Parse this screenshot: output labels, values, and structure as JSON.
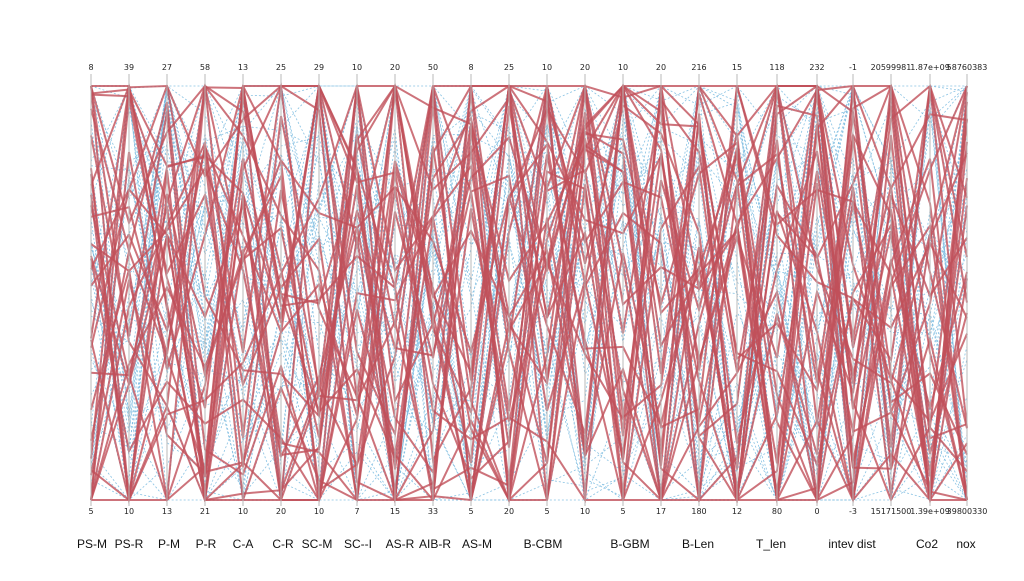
{
  "chart_data": {
    "type": "parallel-coordinates",
    "axes": [
      {
        "label": "PS-M",
        "max": "8",
        "min": "5"
      },
      {
        "label": "PS-R",
        "max": "39",
        "min": "10"
      },
      {
        "label": "P-M",
        "max": "27",
        "min": "13"
      },
      {
        "label": "P-R",
        "max": "58",
        "min": "21"
      },
      {
        "label": "C-A",
        "max": "13",
        "min": "10"
      },
      {
        "label": "C-R",
        "max": "25",
        "min": "20"
      },
      {
        "label": "SC-M",
        "max": "29",
        "min": "10"
      },
      {
        "label": "SC--I",
        "max": "10",
        "min": "7"
      },
      {
        "label": "AS-R",
        "max": "20",
        "min": "15"
      },
      {
        "label": "AIB-R",
        "max": "50",
        "min": "33"
      },
      {
        "label": "AS-M",
        "max": "8",
        "min": "5"
      },
      {
        "label": "",
        "max": "25",
        "min": "20"
      },
      {
        "label": "B-CBM",
        "max": "10",
        "min": "5"
      },
      {
        "label": "",
        "max": "20",
        "min": "10"
      },
      {
        "label": "B-GBM",
        "max": "10",
        "min": "5"
      },
      {
        "label": "",
        "max": "20",
        "min": "17"
      },
      {
        "label": "B-Len",
        "max": "216",
        "min": "180"
      },
      {
        "label": "",
        "max": "15",
        "min": "12"
      },
      {
        "label": "T_len",
        "max": "118",
        "min": "80"
      },
      {
        "label": "",
        "max": "232",
        "min": "0"
      },
      {
        "label": "intev dist",
        "max": "-1",
        "min": "-3"
      },
      {
        "label": "",
        "max": "20599981",
        "min": "15171500"
      },
      {
        "label": "Co2",
        "max": "1.87e+09",
        "min": "1.39e+09"
      },
      {
        "label": "nox",
        "max": "58760383",
        "min": "39800330"
      }
    ],
    "series": [
      {
        "color": "#c0505a",
        "count": 34
      },
      {
        "color": "#7bbbe0",
        "count": 46
      }
    ],
    "grid": false,
    "legend": "none"
  }
}
